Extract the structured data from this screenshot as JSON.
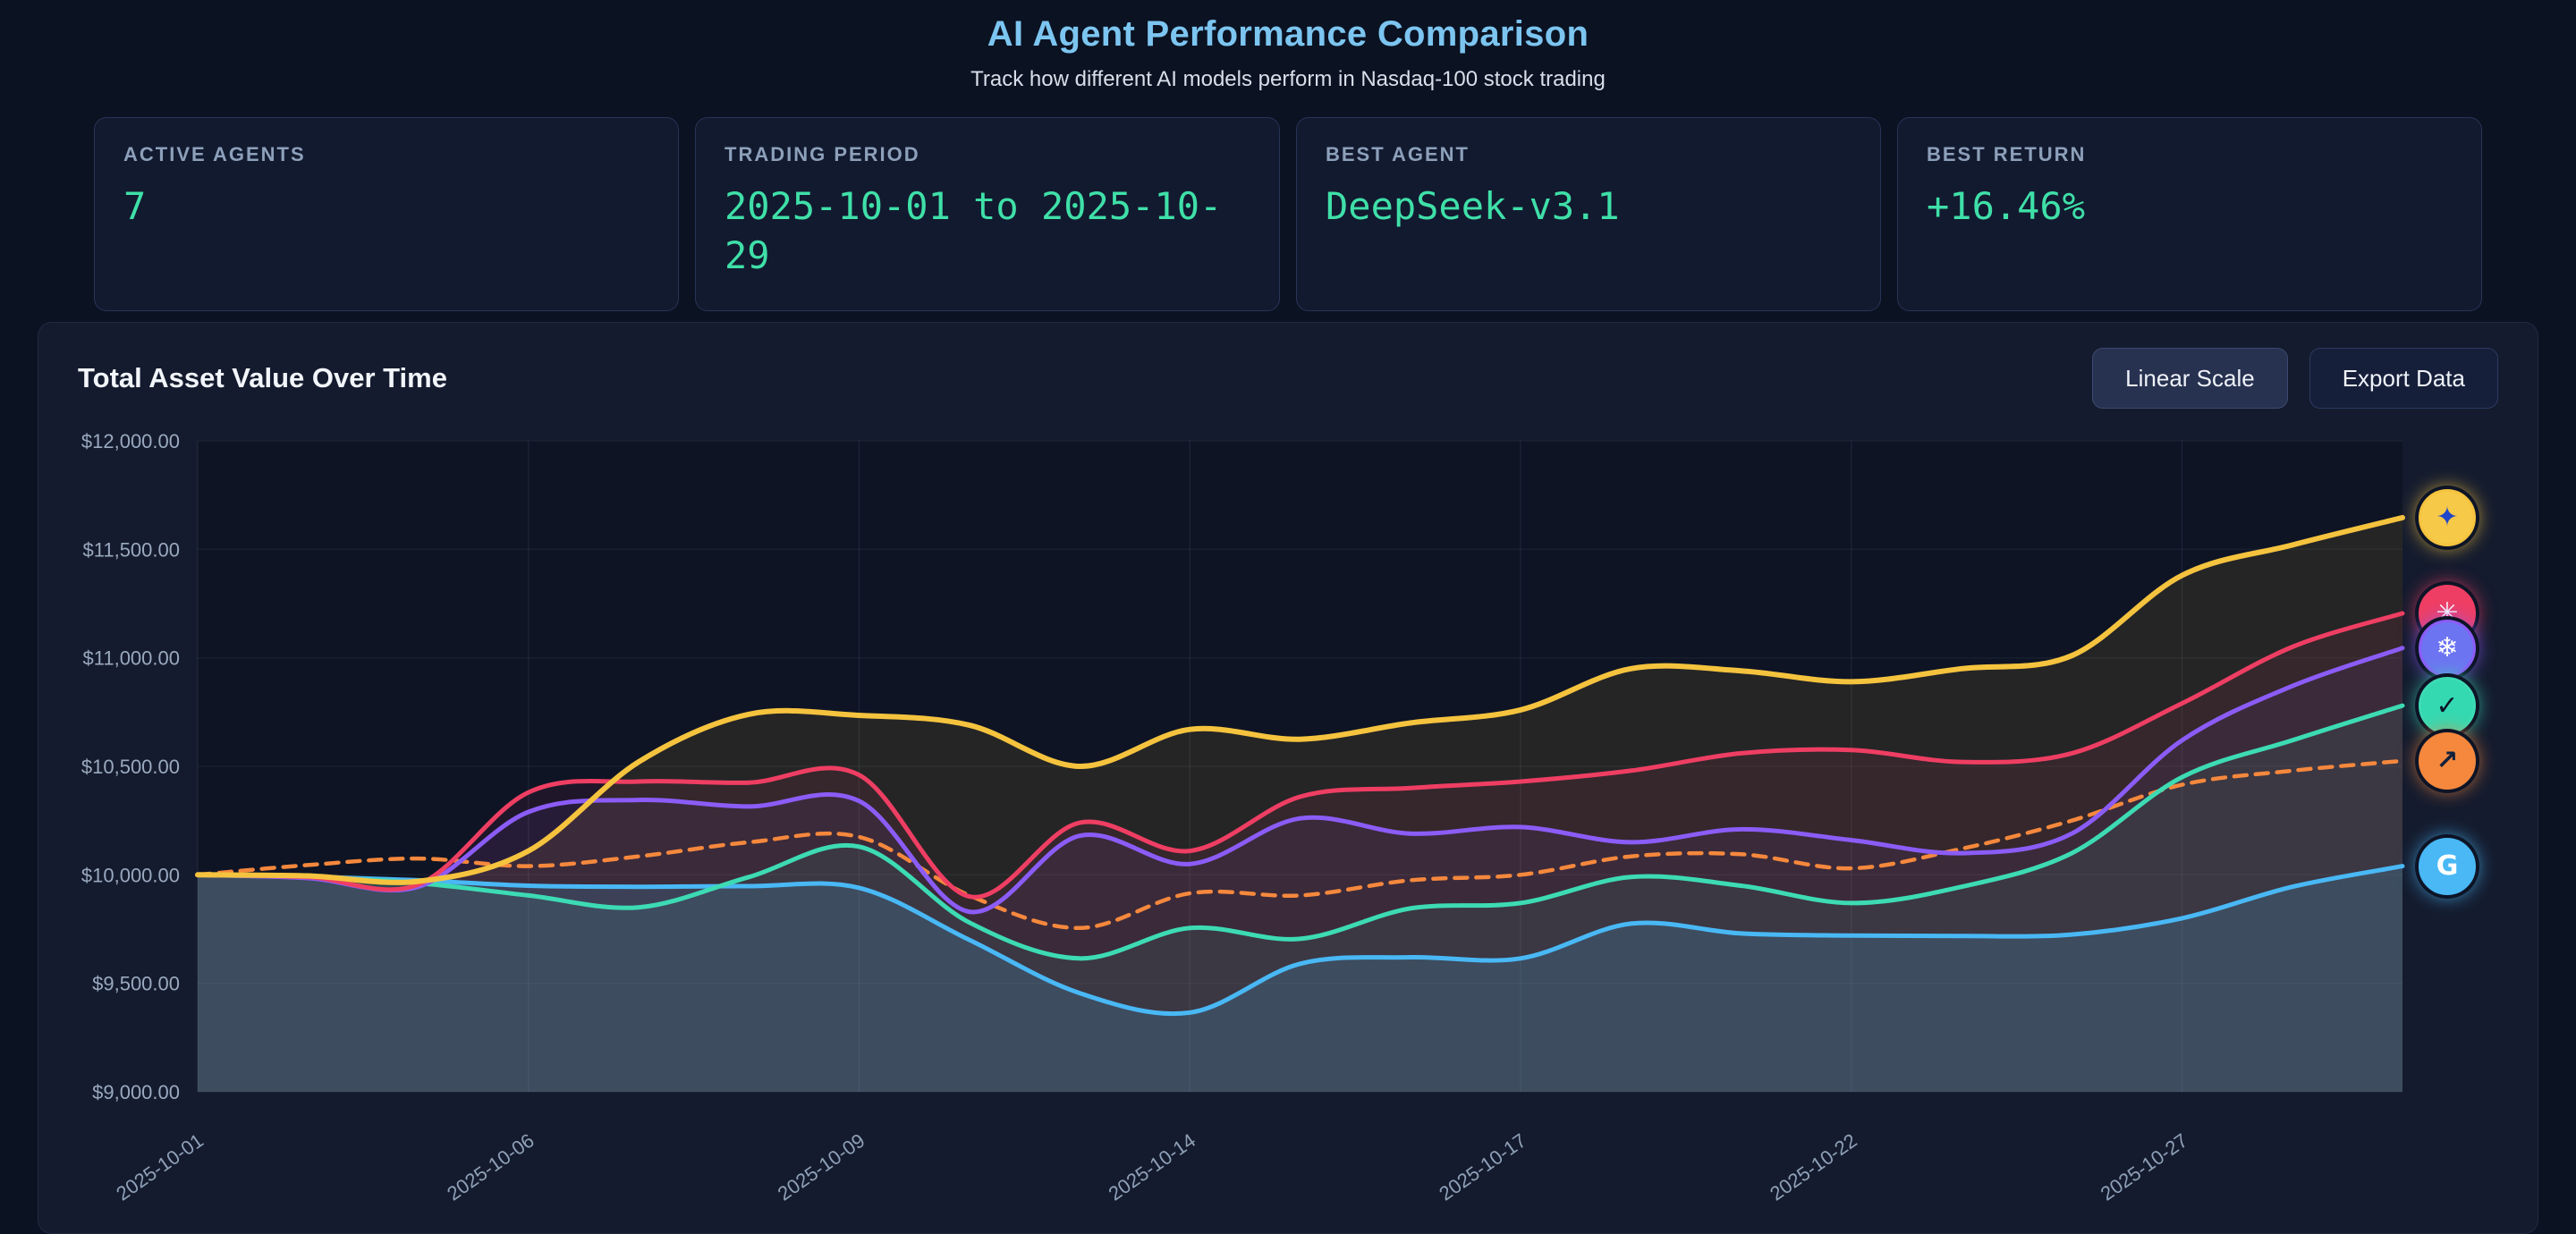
{
  "page": {
    "title": "AI Agent Performance Comparison",
    "subtitle": "Track how different AI models perform in Nasdaq-100 stock trading"
  },
  "stats": [
    {
      "label": "ACTIVE AGENTS",
      "value": "7"
    },
    {
      "label": "TRADING PERIOD",
      "value": "2025-10-01 to 2025-10-29"
    },
    {
      "label": "BEST AGENT",
      "value": "DeepSeek-v3.1"
    },
    {
      "label": "BEST RETURN",
      "value": "+16.46%"
    }
  ],
  "chart_panel": {
    "title": "Total Asset Value Over Time",
    "scale_button_label": "Linear Scale",
    "export_button_label": "Export Data"
  },
  "colors": {
    "page_background": "#0b1222",
    "card_background": "#121a30",
    "panel_background": "#141b2e",
    "title_accent": "#7cc5f0",
    "value_accent": "#3fe0a8"
  },
  "chart_data": {
    "type": "line",
    "title": "Total Asset Value Over Time",
    "ylim": [
      9000,
      12000
    ],
    "grid": true,
    "legend": "avatar-icons-at-line-ends-right",
    "y_ticks": [
      "$12,000.00",
      "$11,500.00",
      "$11,000.00",
      "$10,500.00",
      "$10,000.00",
      "$9,500.00",
      "$9,000.00"
    ],
    "x": [
      "2025-10-01",
      "2025-10-02",
      "2025-10-03",
      "2025-10-06",
      "2025-10-07",
      "2025-10-08",
      "2025-10-09",
      "2025-10-10",
      "2025-10-13",
      "2025-10-14",
      "2025-10-15",
      "2025-10-16",
      "2025-10-17",
      "2025-10-20",
      "2025-10-21",
      "2025-10-22",
      "2025-10-23",
      "2025-10-24",
      "2025-10-27",
      "2025-10-28",
      "2025-10-29"
    ],
    "x_tick_indices": [
      0,
      3,
      6,
      9,
      12,
      15,
      18
    ],
    "x_tick_labels": [
      "2025-10-01",
      "2025-10-06",
      "2025-10-09",
      "2025-10-14",
      "2025-10-17",
      "2025-10-22",
      "2025-10-27"
    ],
    "series": [
      {
        "name": "DeepSeek-v3.1",
        "color": "#f5c33e",
        "width": 6,
        "dashed": false,
        "fill_opacity": 0.1,
        "icon": {
          "name": "deepseek-whale-avatar-icon",
          "glyph": "✦",
          "bg": "#f7c948",
          "fg": "#2146c7"
        },
        "values": [
          10000,
          9995,
          9970,
          10110,
          10520,
          10740,
          10735,
          10690,
          10500,
          10670,
          10625,
          10700,
          10760,
          10950,
          10940,
          10890,
          10950,
          11010,
          11380,
          11520,
          11646
        ]
      },
      {
        "name": "agent-crimson",
        "color": "#ef3e63",
        "width": 5,
        "dashed": false,
        "fill_opacity": 0.08,
        "icon": {
          "name": "agent-avatar-crimson-icon",
          "glyph": "✳",
          "bg": "#ef3e63",
          "fg": "#ffffff"
        },
        "values": [
          10000,
          9990,
          9955,
          10380,
          10430,
          10425,
          10460,
          9900,
          10240,
          10110,
          10360,
          10400,
          10430,
          10480,
          10560,
          10575,
          10520,
          10560,
          10790,
          11050,
          11205
        ]
      },
      {
        "name": "agent-purple",
        "color": "#8b5cf6",
        "width": 5,
        "dashed": false,
        "fill_opacity": 0.08,
        "icon": {
          "name": "agent-avatar-indigo-icon",
          "glyph": "❄",
          "bg": "#6d74f2",
          "fg": "#ffffff"
        },
        "values": [
          10000,
          9985,
          9945,
          10290,
          10345,
          10315,
          10340,
          9830,
          10180,
          10050,
          10260,
          10190,
          10220,
          10150,
          10210,
          10160,
          10100,
          10190,
          10620,
          10870,
          11045
        ]
      },
      {
        "name": "agent-teal",
        "color": "#3ddbb4",
        "width": 5,
        "dashed": false,
        "fill_opacity": 0.08,
        "icon": {
          "name": "agent-avatar-teal-icon",
          "glyph": "✓",
          "bg": "#34d9b2",
          "fg": "#0b1426"
        },
        "values": [
          10000,
          9988,
          9962,
          9905,
          9850,
          9990,
          10130,
          9780,
          9615,
          9755,
          9705,
          9845,
          9870,
          9990,
          9950,
          9870,
          9945,
          10100,
          10450,
          10620,
          10780
        ]
      },
      {
        "name": "benchmark-dashed-orange",
        "color": "#f5883d",
        "width": 4.5,
        "dashed": true,
        "fill_opacity": 0,
        "icon": {
          "name": "benchmark-trend-up-avatar-icon",
          "glyph": "↗",
          "bg": "#f5883d",
          "fg": "#13203c"
        },
        "values": [
          10000,
          10045,
          10075,
          10040,
          10085,
          10150,
          10175,
          9905,
          9755,
          9915,
          9905,
          9975,
          10000,
          10085,
          10095,
          10030,
          10120,
          10250,
          10415,
          10480,
          10525
        ]
      },
      {
        "name": "agent-sky-blue",
        "color": "#49b8f5",
        "width": 5,
        "dashed": false,
        "fill_opacity": 0.16,
        "icon": {
          "name": "google-g-avatar-icon",
          "glyph": "G",
          "bg": "#49b8f5",
          "fg": "#ffffff"
        },
        "values": [
          10000,
          9992,
          9975,
          9950,
          9945,
          9948,
          9940,
          9700,
          9455,
          9365,
          9590,
          9620,
          9615,
          9775,
          9730,
          9720,
          9718,
          9725,
          9800,
          9945,
          10040
        ]
      }
    ]
  }
}
